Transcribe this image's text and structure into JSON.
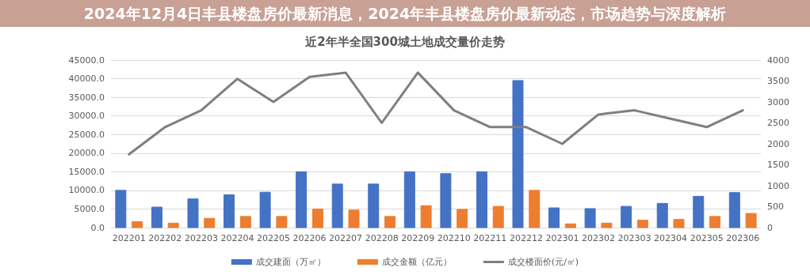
{
  "chart_data": {
    "type": "bar",
    "title": "近2年半全国300城土地成交量价走势",
    "annotations": [
      "2024年12月4日丰县楼盘房价最新消息，2024年丰县楼盘房价最新动态，市场趋势与深度解析"
    ],
    "categories": [
      "202201",
      "202202",
      "202203",
      "202204",
      "202205",
      "202206",
      "202207",
      "202208",
      "202209",
      "202210",
      "202211",
      "202212",
      "202301",
      "202302",
      "202303",
      "202304",
      "202305",
      "202306"
    ],
    "series": [
      {
        "name": "成交建面（万㎡）",
        "color": "#4472c4",
        "values": [
          10000,
          5500,
          7700,
          8800,
          9500,
          15000,
          11700,
          11700,
          15000,
          14500,
          15000,
          39500,
          5300,
          5100,
          5700,
          6500,
          8400,
          9400
        ]
      },
      {
        "name": "成交金额（亿元）",
        "color": "#ed7d31",
        "values": [
          1600,
          1200,
          2500,
          3000,
          3000,
          5000,
          4700,
          3000,
          5900,
          4900,
          5700,
          10000,
          1000,
          1200,
          2000,
          2200,
          3000,
          3800
        ]
      },
      {
        "name": "成交楼面价(元/㎡)",
        "type": "line",
        "axis": "y2",
        "color": "#7f7f7f",
        "values": [
          1750,
          2400,
          2800,
          3550,
          3000,
          3600,
          3700,
          2500,
          3700,
          2800,
          2400,
          2400,
          2000,
          2700,
          2800,
          2600,
          2400,
          2800
        ]
      }
    ],
    "ylim": [
      0,
      45000
    ],
    "yticks": [
      {
        "value": 0,
        "label": "0.0"
      },
      {
        "value": 5000,
        "label": "5000.0"
      },
      {
        "value": 10000,
        "label": "10000.0"
      },
      {
        "value": 15000,
        "label": "15000.0"
      },
      {
        "value": 20000,
        "label": "20000.0"
      },
      {
        "value": 25000,
        "label": "25000.0"
      },
      {
        "value": 30000,
        "label": "30000.0"
      },
      {
        "value": 35000,
        "label": "35000.0"
      },
      {
        "value": 40000,
        "label": "40000.0"
      },
      {
        "value": 45000,
        "label": "45000.0"
      }
    ],
    "y2lim": [
      0,
      4000
    ],
    "y2ticks": [
      0,
      500,
      1000,
      1500,
      2000,
      2500,
      3000,
      3500,
      4000
    ],
    "grid": "y",
    "legend": "bottom",
    "marker": "none",
    "line_style": "solid"
  }
}
